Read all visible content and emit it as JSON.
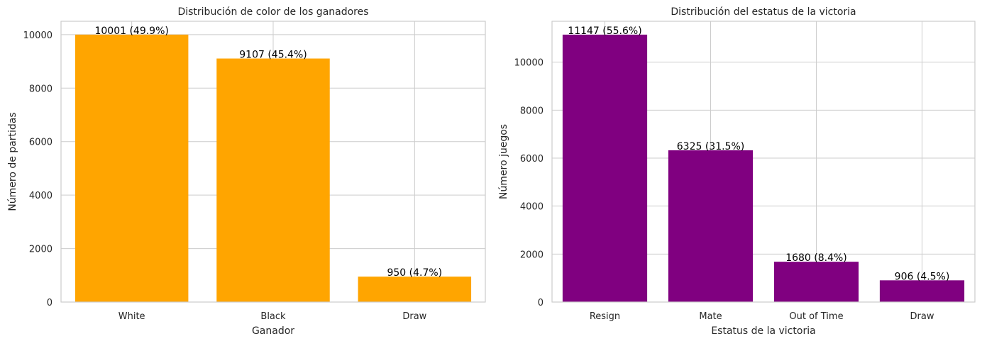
{
  "chart_data": [
    {
      "type": "bar",
      "title": "Distribución de color de los ganadores",
      "xlabel": "Ganador",
      "ylabel": "Número de partidas",
      "categories": [
        "White",
        "Black",
        "Draw"
      ],
      "values": [
        10001,
        9107,
        950
      ],
      "bar_labels": [
        "10001 (49.9%)",
        "9107 (45.4%)",
        "950 (4.7%)"
      ],
      "yticks": [
        0,
        2000,
        4000,
        6000,
        8000,
        10000
      ],
      "ylim": [
        0,
        10500
      ],
      "color": "#FFA500",
      "grid": true,
      "legend": "none"
    },
    {
      "type": "bar",
      "title": "Distribución del estatus de la victoria",
      "xlabel": "Estatus de la victoria",
      "ylabel": "Número juegos",
      "categories": [
        "Resign",
        "Mate",
        "Out of Time",
        "Draw"
      ],
      "values": [
        11147,
        6325,
        1680,
        906
      ],
      "bar_labels": [
        "11147 (55.6%)",
        "6325 (31.5%)",
        "1680 (8.4%)",
        "906 (4.5%)"
      ],
      "yticks": [
        0,
        2000,
        4000,
        6000,
        8000,
        10000
      ],
      "ylim": [
        0,
        11704
      ],
      "color": "#800080",
      "grid": true,
      "legend": "none"
    }
  ]
}
